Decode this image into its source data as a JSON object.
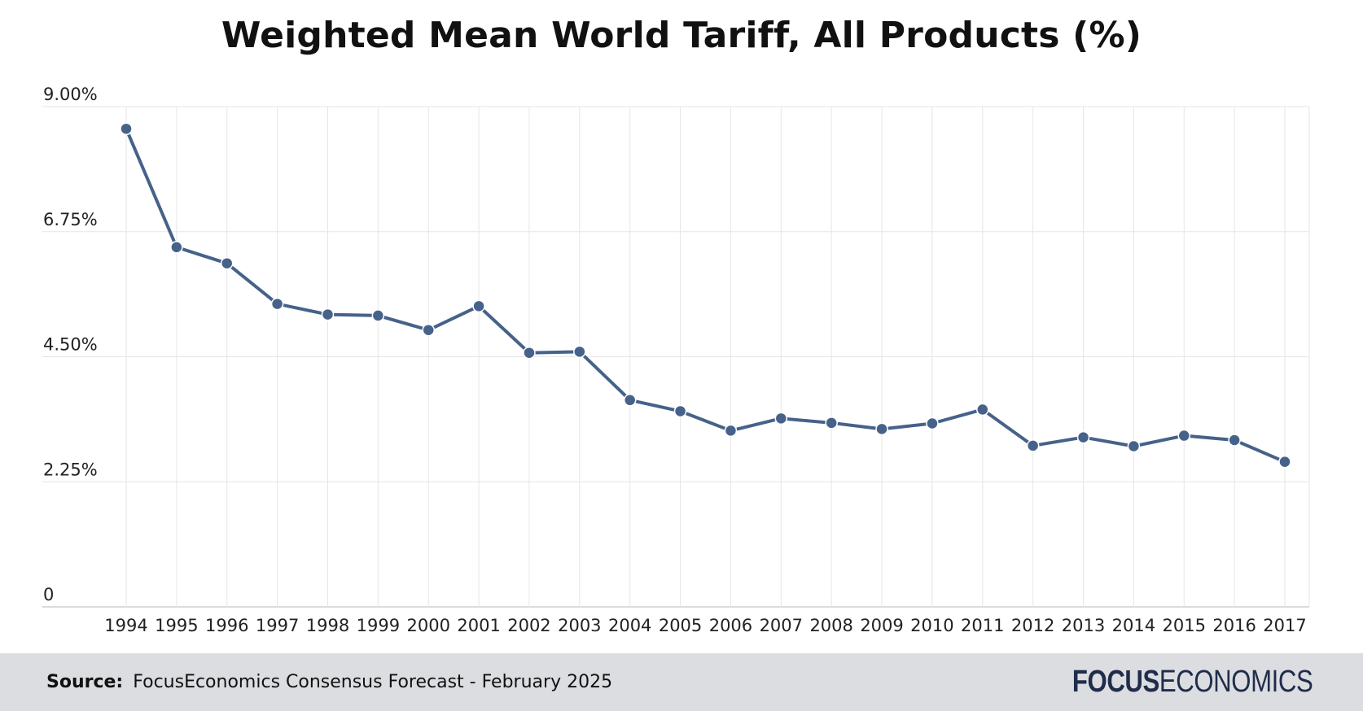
{
  "chart_data": {
    "type": "line",
    "title": "Weighted Mean World Tariff, All Products (%)",
    "xlabel": "",
    "ylabel": "",
    "x": [
      "1994",
      "1995",
      "1996",
      "1997",
      "1998",
      "1999",
      "2000",
      "2001",
      "2002",
      "2003",
      "2004",
      "2005",
      "2006",
      "2007",
      "2008",
      "2009",
      "2010",
      "2011",
      "2012",
      "2013",
      "2014",
      "2015",
      "2016",
      "2017"
    ],
    "series": [
      {
        "values": [
          8.6,
          6.47,
          6.18,
          5.45,
          5.26,
          5.24,
          4.98,
          5.41,
          4.57,
          4.59,
          3.72,
          3.52,
          3.17,
          3.39,
          3.31,
          3.2,
          3.3,
          3.55,
          2.9,
          3.05,
          2.89,
          3.08,
          3.0,
          2.61
        ],
        "color": "#46628a"
      }
    ],
    "ylim": [
      0,
      9
    ],
    "yticks": [
      0,
      2.25,
      4.5,
      6.75,
      9
    ],
    "ytick_labels": [
      "0",
      "2.25%",
      "4.50%",
      "6.75%",
      "9.00%"
    ],
    "grid": true,
    "legend": "none"
  },
  "footer": {
    "source_label": "Source:",
    "source_text": "FocusEconomics Consensus Forecast - February 2025",
    "brand_bold": "FOCUS",
    "brand_light": "ECONOMICS"
  }
}
